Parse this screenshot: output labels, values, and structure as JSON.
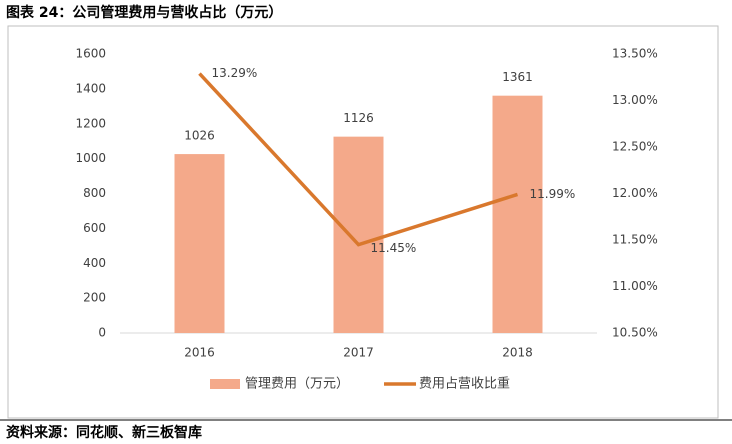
{
  "chart_data": {
    "type": "bar",
    "title": "图表 24：公司管理费用与营收占比（万元）",
    "source": "资料来源：同花顺、新三板智库",
    "categories": [
      "2016",
      "2017",
      "2018"
    ],
    "series": [
      {
        "name": "管理费用（万元）",
        "type": "bar",
        "color": "#f4a98a",
        "values": [
          1026,
          1126,
          1361
        ]
      },
      {
        "name": "费用占营收比重",
        "type": "line",
        "axis": "y2",
        "color": "#d9782d",
        "values": [
          13.29,
          11.45,
          11.99
        ],
        "value_labels": [
          "13.29%",
          "11.45%",
          "11.99%"
        ]
      }
    ],
    "ylim": [
      0,
      1600
    ],
    "yticks": [
      0,
      200,
      400,
      600,
      800,
      1000,
      1200,
      1400,
      1600
    ],
    "y2lim": [
      10.5,
      13.5
    ],
    "y2ticks": [
      {
        "value": 10.5,
        "label": "10.50%"
      },
      {
        "value": 11,
        "label": "11.00%"
      },
      {
        "value": 11.5,
        "label": "11.50%"
      },
      {
        "value": 12,
        "label": "12.00%"
      },
      {
        "value": 12.5,
        "label": "12.50%"
      },
      {
        "value": 13,
        "label": "13.00%"
      },
      {
        "value": 13.5,
        "label": "13.50%"
      }
    ],
    "grid": false
  }
}
